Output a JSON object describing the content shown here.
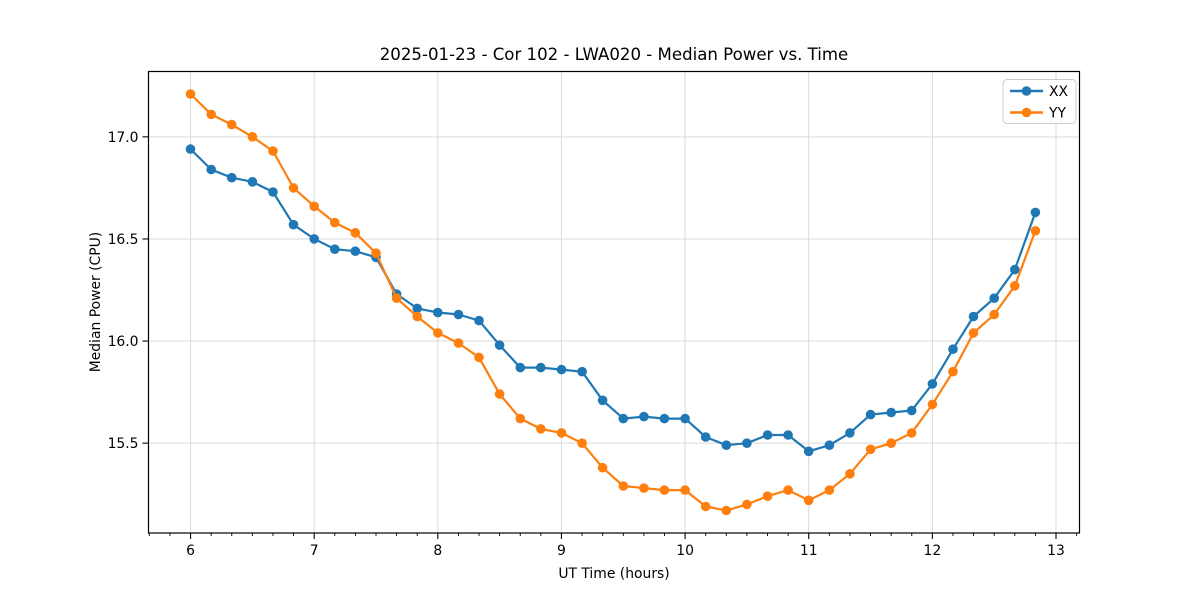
{
  "chart_data": {
    "type": "line",
    "title": "2025-01-23 - Cor 102 - LWA020 - Median Power vs. Time",
    "xlabel": "UT Time (hours)",
    "ylabel": "Median Power (CPU)",
    "xlim": [
      5.66,
      13.19
    ],
    "ylim": [
      15.06,
      17.32
    ],
    "grid": true,
    "legend_position": "upper right",
    "x_ticks": {
      "values": [
        6,
        7,
        8,
        9,
        10,
        11,
        12,
        13
      ],
      "labels": [
        "6",
        "7",
        "8",
        "9",
        "10",
        "11",
        "12",
        "13"
      ]
    },
    "y_ticks": {
      "values": [
        15.5,
        16.0,
        16.5,
        17.0
      ],
      "labels": [
        "15.5",
        "16.0",
        "16.5",
        "17.0"
      ]
    },
    "x_minor_tick_step": 0.166667,
    "x": [
      6.0,
      6.167,
      6.333,
      6.5,
      6.667,
      6.833,
      7.0,
      7.167,
      7.333,
      7.5,
      7.667,
      7.833,
      8.0,
      8.167,
      8.333,
      8.5,
      8.667,
      8.833,
      9.0,
      9.167,
      9.333,
      9.5,
      9.667,
      9.833,
      10.0,
      10.167,
      10.333,
      10.5,
      10.667,
      10.833,
      11.0,
      11.167,
      11.333,
      11.5,
      11.667,
      11.833,
      12.0,
      12.167,
      12.333,
      12.5,
      12.667,
      12.833
    ],
    "series": [
      {
        "name": "XX",
        "color": "#1f77b4",
        "values": [
          16.94,
          16.84,
          16.8,
          16.78,
          16.73,
          16.57,
          16.5,
          16.45,
          16.44,
          16.41,
          16.23,
          16.16,
          16.14,
          16.13,
          16.1,
          15.98,
          15.87,
          15.87,
          15.86,
          15.85,
          15.71,
          15.62,
          15.63,
          15.62,
          15.62,
          15.53,
          15.49,
          15.5,
          15.54,
          15.54,
          15.46,
          15.49,
          15.55,
          15.64,
          15.65,
          15.66,
          15.79,
          15.96,
          16.12,
          16.21,
          16.35,
          16.63
        ]
      },
      {
        "name": "YY",
        "color": "#ff7f0e",
        "values": [
          17.21,
          17.11,
          17.06,
          17.0,
          16.93,
          16.75,
          16.66,
          16.58,
          16.53,
          16.43,
          16.21,
          16.12,
          16.04,
          15.99,
          15.92,
          15.74,
          15.62,
          15.57,
          15.55,
          15.5,
          15.38,
          15.29,
          15.28,
          15.27,
          15.27,
          15.19,
          15.17,
          15.2,
          15.24,
          15.27,
          15.22,
          15.27,
          15.35,
          15.47,
          15.5,
          15.55,
          15.69,
          15.85,
          16.04,
          16.13,
          16.27,
          16.54
        ]
      }
    ],
    "colors": {
      "background": "#ffffff",
      "grid": "#d9d9d9",
      "spine": "#000000",
      "series_xx": "#1f77b4",
      "series_yy": "#ff7f0e"
    }
  }
}
